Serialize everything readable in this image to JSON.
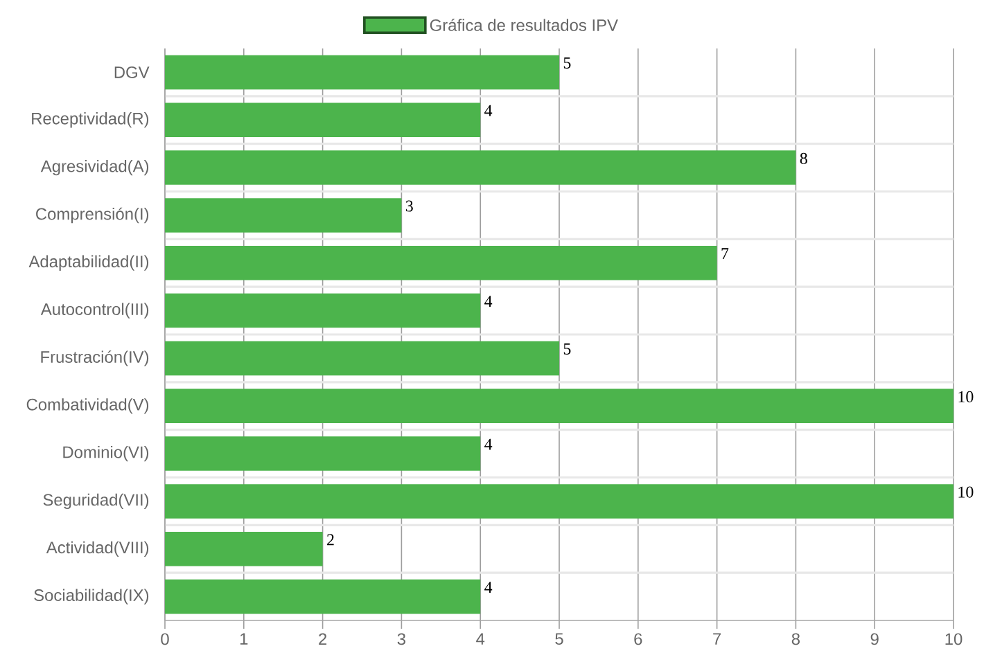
{
  "chart_data": {
    "type": "bar",
    "orientation": "horizontal",
    "categories": [
      "DGV",
      "Receptividad(R)",
      "Agresividad(A)",
      "Comprensión(I)",
      "Adaptabilidad(II)",
      "Autocontrol(III)",
      "Frustración(IV)",
      "Combatividad(V)",
      "Dominio(VI)",
      "Seguridad(VII)",
      "Actividad(VIII)",
      "Sociabilidad(IX)"
    ],
    "series": [
      {
        "name": "Gráfica de resultados IPV",
        "color": "#4cb44c",
        "values": [
          5,
          4,
          8,
          3,
          7,
          4,
          5,
          10,
          4,
          10,
          2,
          4
        ]
      }
    ],
    "xlim": [
      0,
      10
    ],
    "xticks": [
      0,
      1,
      2,
      3,
      4,
      5,
      6,
      7,
      8,
      9,
      10
    ],
    "grid": true,
    "legend": "top",
    "data_labels": true
  }
}
